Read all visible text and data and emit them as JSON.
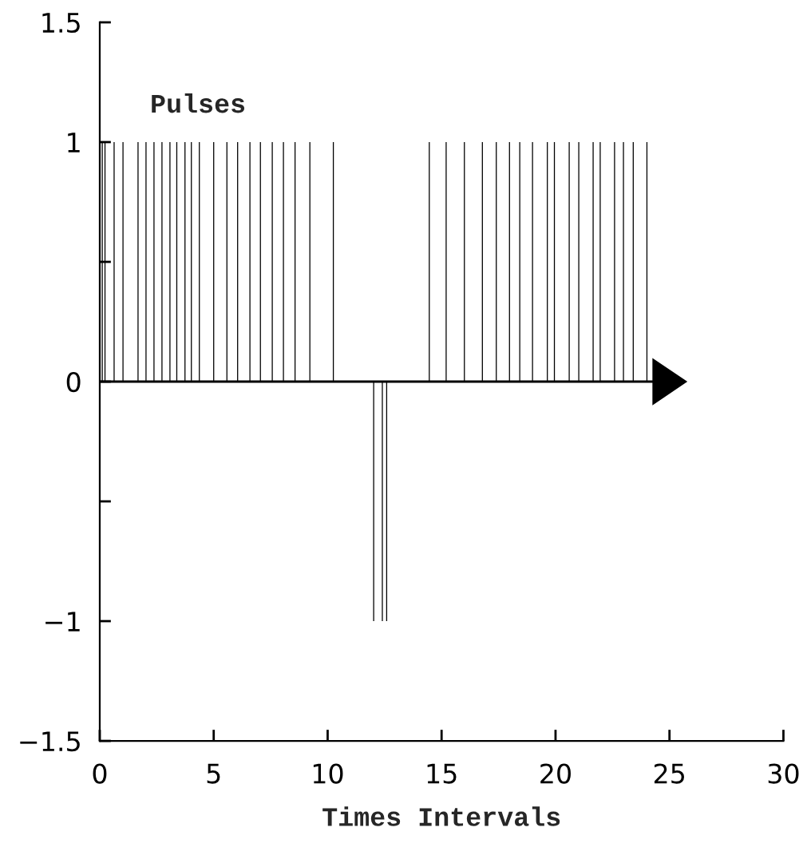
{
  "chart_data": {
    "type": "bar",
    "xlabel": "Times Intervals",
    "series": [
      {
        "name": "Pulses",
        "color": "#000000",
        "x": [
          0.11,
          0.23,
          0.63,
          1.02,
          1.68,
          2.03,
          2.38,
          2.73,
          3.08,
          3.38,
          3.74,
          4.02,
          4.37,
          5.0,
          5.58,
          6.05,
          6.59,
          7.05,
          7.57,
          8.06,
          8.57,
          9.22,
          10.25,
          12.02,
          12.4,
          12.59,
          14.46,
          15.2,
          16.0,
          16.79,
          17.4,
          17.98,
          18.43,
          18.99,
          19.64,
          19.95,
          20.6,
          21.02,
          21.65,
          21.96,
          22.59,
          22.98,
          23.41,
          24.01
        ],
        "values": [
          1,
          1,
          1,
          1,
          1,
          1,
          1,
          1,
          1,
          1,
          1,
          1,
          1,
          1,
          1,
          1,
          1,
          1,
          1,
          1,
          1,
          1,
          1,
          -1,
          -1,
          -1,
          1,
          1,
          1,
          1,
          1,
          1,
          1,
          1,
          1,
          1,
          1,
          1,
          1,
          1,
          1,
          1,
          1,
          1
        ]
      }
    ],
    "xlim": [
      0,
      30
    ],
    "xticks": [
      0,
      5,
      10,
      15,
      20,
      25,
      30
    ],
    "ylim": [
      -1.5,
      1.5
    ],
    "yticks": [
      {
        "value": -1.5,
        "label": "−1.5"
      },
      {
        "value": -1,
        "label": "−1"
      },
      {
        "value": -0.5,
        "label": null
      },
      0,
      {
        "value": 0.5,
        "label": null
      },
      1,
      1.5
    ],
    "ref_lines": [
      {
        "axis": "y",
        "value": 0,
        "color": "#000000"
      }
    ],
    "grid": false,
    "legend": false
  }
}
